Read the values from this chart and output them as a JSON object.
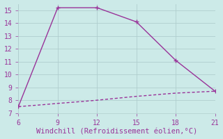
{
  "line1_x": [
    6,
    9,
    12,
    15,
    18,
    21
  ],
  "line1_y": [
    7.5,
    15.2,
    15.2,
    14.1,
    11.1,
    8.7
  ],
  "line2_x": [
    6,
    7,
    8,
    9,
    10,
    11,
    12,
    13,
    14,
    15,
    16,
    17,
    18,
    19,
    20,
    21
  ],
  "line2_y": [
    7.5,
    7.58,
    7.66,
    7.75,
    7.83,
    7.91,
    8.0,
    8.1,
    8.2,
    8.3,
    8.38,
    8.47,
    8.55,
    8.6,
    8.65,
    8.7
  ],
  "line_color": "#993399",
  "line_width": 1.0,
  "xlim": [
    6,
    21
  ],
  "ylim": [
    7,
    15.5
  ],
  "xticks": [
    6,
    9,
    12,
    15,
    18,
    21
  ],
  "yticks": [
    7,
    8,
    9,
    10,
    11,
    12,
    13,
    14,
    15
  ],
  "xlabel": "Windchill (Refroidissement éolien,°C)",
  "xlabel_color": "#993399",
  "background_color": "#cceae8",
  "grid_color": "#b0cece",
  "tick_fontsize": 7,
  "xlabel_fontsize": 7.5
}
